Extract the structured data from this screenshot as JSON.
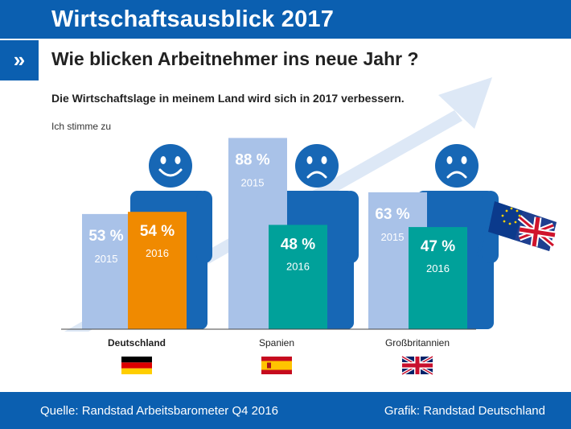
{
  "header": {
    "title": "Wirtschaftsausblick 2017",
    "chevron": "»"
  },
  "subtitle": "Wie blicken Arbeitnehmer ins neue Jahr ?",
  "statement": "Die Wirtschaftslage in meinem Land wird sich in 2017 verbessern.",
  "colors": {
    "brand_blue": "#0b5fb0",
    "bar_2015": "#a9c2e8",
    "bar_2016_de": "#f08a00",
    "bar_2016_other": "#00a19a",
    "person": "#1767b5",
    "arrow": "#dde8f6"
  },
  "chart_data": {
    "type": "bar",
    "ylabel": "Ich stimme zu",
    "categories": [
      "Deutschland",
      "Spanien",
      "Großbritannien"
    ],
    "series": [
      {
        "name": "2015",
        "values": [
          53,
          88,
          63
        ]
      },
      {
        "name": "2016",
        "values": [
          54,
          48,
          47
        ]
      }
    ],
    "value_labels": {
      "2015": [
        "53 %",
        "88 %",
        "63 %"
      ],
      "2016": [
        "54 %",
        "48 %",
        "47 %"
      ]
    },
    "year_labels": [
      "2015",
      "2016"
    ],
    "moods": [
      "happy",
      "sad",
      "sad"
    ],
    "highlight_category": "Deutschland",
    "flags": [
      "germany-flag",
      "spain-flag",
      "uk-flag"
    ],
    "extra_icons": [
      "eu-uk-flag-on-pole"
    ],
    "grid": false,
    "legend": "none"
  },
  "footer": {
    "source": "Quelle: Randstad Arbeitsbarometer Q4 2016",
    "credit": "Grafik: Randstad Deutschland"
  }
}
